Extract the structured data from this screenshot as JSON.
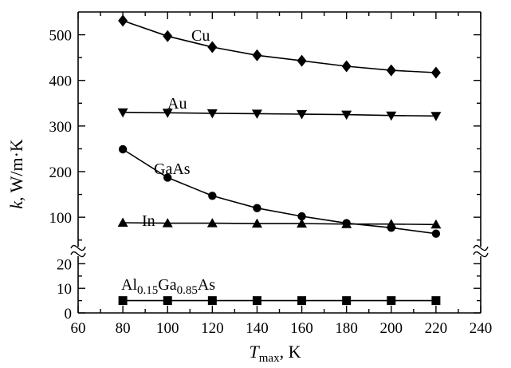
{
  "chart_data": {
    "type": "line",
    "xlabel": {
      "main": "T",
      "sub": "max",
      "tail": ", K"
    },
    "ylabel": {
      "main": "k",
      "tail": ", W/m·K"
    },
    "xlim": [
      60,
      240
    ],
    "x_ticks": [
      60,
      80,
      100,
      120,
      140,
      160,
      180,
      200,
      220,
      240
    ],
    "y_lower": {
      "range": [
        0,
        25
      ],
      "ticks": [
        0,
        10,
        20
      ],
      "minor_ticks": [
        5,
        15
      ]
    },
    "y_upper": {
      "range": [
        25,
        550
      ],
      "ticks": [
        100,
        200,
        300,
        400,
        500
      ],
      "minor_ticks": [
        50,
        150,
        250,
        350,
        450
      ]
    },
    "axis_break": true,
    "grid": false,
    "x": [
      80,
      100,
      120,
      140,
      160,
      180,
      200,
      220
    ],
    "series": [
      {
        "name": "Cu",
        "marker": "diamond",
        "values": [
          531,
          497,
          473,
          455,
          443,
          431,
          422,
          417
        ]
      },
      {
        "name": "Au",
        "marker": "triangle-down",
        "values": [
          330,
          329,
          328,
          327,
          326,
          325,
          323,
          322
        ]
      },
      {
        "name": "GaAs",
        "marker": "circle",
        "values": [
          249,
          187,
          147,
          120,
          102,
          87,
          77,
          64
        ]
      },
      {
        "name": "In",
        "marker": "triangle-up",
        "values": [
          88,
          87,
          87,
          86,
          86,
          85,
          85,
          84
        ]
      },
      {
        "name": "Al0.15Ga0.85As",
        "label_parts": [
          "Al",
          "0.15",
          "Ga",
          "0.85",
          "As"
        ],
        "marker": "square",
        "values": [
          5,
          5,
          5,
          5,
          5,
          5,
          5,
          5
        ]
      }
    ]
  }
}
